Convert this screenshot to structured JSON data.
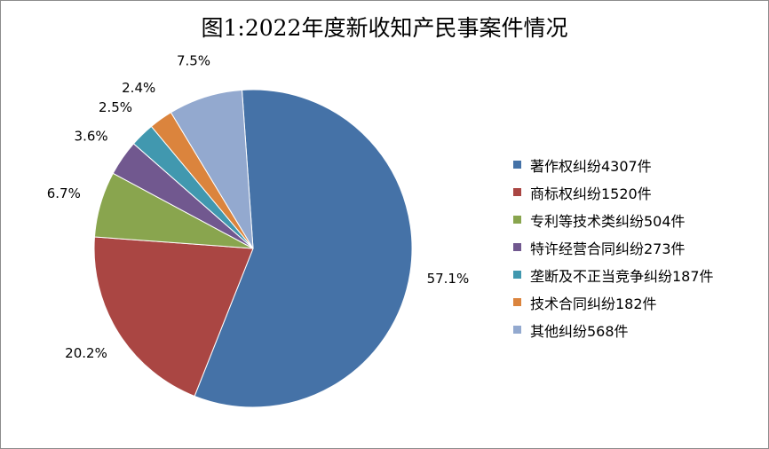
{
  "chart_data": {
    "type": "pie",
    "title": "图1:2022年度新收知产民事案件情况",
    "start_angle_deg": -4,
    "direction": "clockwise",
    "legend_position": "right",
    "slices": [
      {
        "label": "著作权纠纷4307件",
        "value": 4307,
        "percent_label": "57.1%",
        "color": "#4572a7"
      },
      {
        "label": "商标权纠纷1520件",
        "value": 1520,
        "percent_label": "20.2%",
        "color": "#aa4643"
      },
      {
        "label": "专利等技术类纠纷504件",
        "value": 504,
        "percent_label": "6.7%",
        "color": "#89a54e"
      },
      {
        "label": "特许经营合同纠纷273件",
        "value": 273,
        "percent_label": "3.6%",
        "color": "#71588f"
      },
      {
        "label": "垄断及不正当竞争纠纷187件",
        "value": 187,
        "percent_label": "2.5%",
        "color": "#4198af"
      },
      {
        "label": "技术合同纠纷182件",
        "value": 182,
        "percent_label": "2.4%",
        "color": "#db843d"
      },
      {
        "label": "其他纠纷568件",
        "value": 568,
        "percent_label": "7.5%",
        "color": "#93a9cf"
      }
    ]
  }
}
